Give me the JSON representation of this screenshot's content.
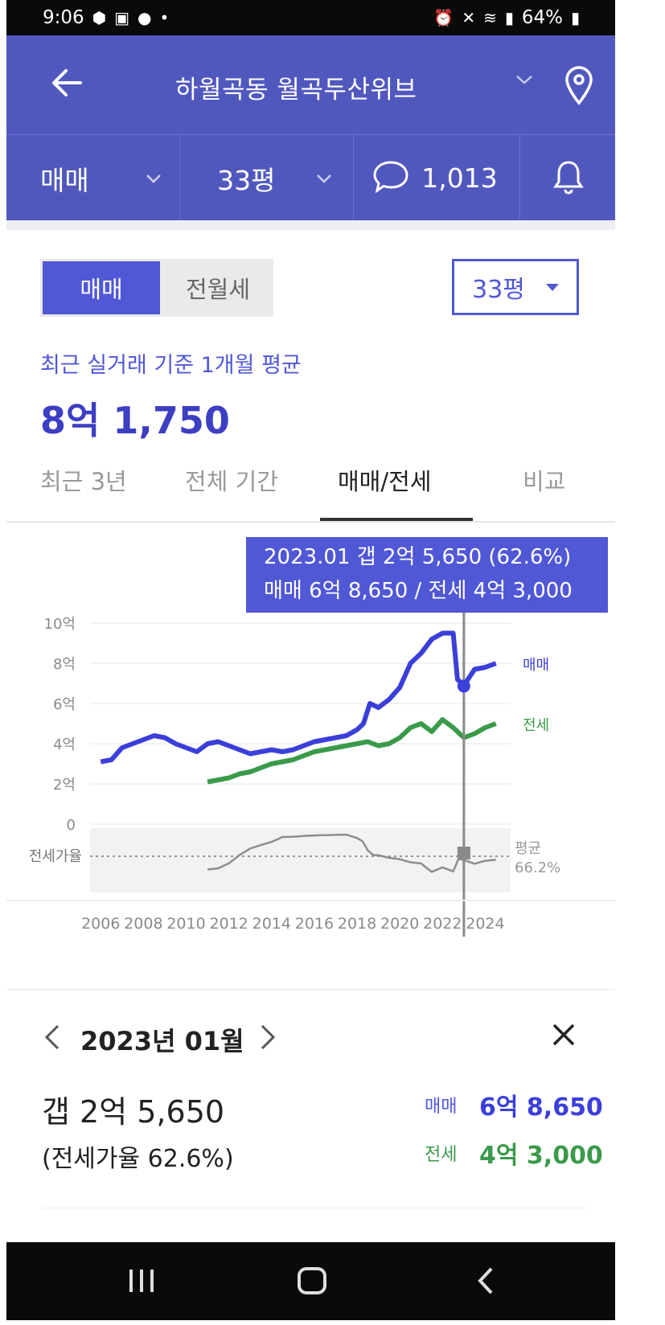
{
  "status": {
    "time": "9:06",
    "battery": "64%"
  },
  "header": {
    "title": "하월곡동 월곡두산위브"
  },
  "subbar": {
    "deal_type": "매매",
    "size": "33평",
    "comments": "1,013"
  },
  "segment": {
    "option_sale": "매매",
    "option_rent": "전월세",
    "size_select": "33평"
  },
  "summary": {
    "label": "최근 실거래 기준 1개월 평균",
    "price": "8억 1,750"
  },
  "tabs": [
    {
      "label": "최근 3년"
    },
    {
      "label": "전체 기간"
    },
    {
      "label": "매매/전세"
    },
    {
      "label": "비교"
    }
  ],
  "tooltip": {
    "line1": "2023.01  갭 2억 5,650 (62.6%)",
    "line2": "매매 6억 8,650 / 전세 4억 3,000"
  },
  "chart_data": {
    "type": "line",
    "x_ticks": [
      "2006",
      "2008",
      "2010",
      "2012",
      "2014",
      "2016",
      "2018",
      "2020",
      "2022",
      "2024"
    ],
    "y_ticks": [
      "10억",
      "8억",
      "6억",
      "4억",
      "2억",
      "0"
    ],
    "ylim": [
      0,
      10
    ],
    "y_unit": "억",
    "ratio_axis_label": "전세가율",
    "ratio_avg_label": "평균",
    "ratio_avg_value": "66.2%",
    "series": [
      {
        "name": "매매",
        "color": "#3b3fd9",
        "x": [
          2006.0,
          2006.5,
          2007.0,
          2007.5,
          2008.0,
          2008.5,
          2009.0,
          2009.5,
          2010.0,
          2010.5,
          2011.0,
          2011.5,
          2012.0,
          2012.5,
          2013.0,
          2013.5,
          2014.0,
          2014.5,
          2015.0,
          2015.5,
          2016.0,
          2016.5,
          2017.0,
          2017.5,
          2018.0,
          2018.3,
          2018.6,
          2019.0,
          2019.5,
          2020.0,
          2020.5,
          2021.0,
          2021.5,
          2022.0,
          2022.3,
          2022.5,
          2022.7,
          2023.0,
          2023.5,
          2024.0,
          2024.5
        ],
        "values": [
          3.1,
          3.2,
          3.8,
          4.0,
          4.2,
          4.4,
          4.3,
          4.0,
          3.8,
          3.6,
          4.0,
          4.1,
          3.9,
          3.7,
          3.5,
          3.6,
          3.7,
          3.6,
          3.7,
          3.9,
          4.1,
          4.2,
          4.3,
          4.4,
          4.7,
          5.0,
          6.0,
          5.8,
          6.2,
          6.8,
          8.0,
          8.5,
          9.2,
          9.5,
          9.5,
          9.5,
          7.2,
          6.9,
          7.7,
          7.8,
          8.0
        ]
      },
      {
        "name": "전세",
        "color": "#3a9a4a",
        "x": [
          2011.0,
          2011.5,
          2012.0,
          2012.5,
          2013.0,
          2013.5,
          2014.0,
          2014.5,
          2015.0,
          2015.5,
          2016.0,
          2016.5,
          2017.0,
          2017.5,
          2018.0,
          2018.5,
          2019.0,
          2019.5,
          2020.0,
          2020.5,
          2021.0,
          2021.5,
          2022.0,
          2022.5,
          2023.0,
          2023.5,
          2024.0,
          2024.5
        ],
        "values": [
          2.1,
          2.2,
          2.3,
          2.5,
          2.6,
          2.8,
          3.0,
          3.1,
          3.2,
          3.4,
          3.6,
          3.7,
          3.8,
          3.9,
          4.0,
          4.1,
          3.9,
          4.0,
          4.3,
          4.8,
          5.0,
          4.6,
          5.2,
          4.8,
          4.3,
          4.5,
          4.8,
          5.0
        ]
      }
    ],
    "selected": {
      "x": 2023.0,
      "sale": 6.865,
      "jeonse": 4.3
    }
  },
  "detail": {
    "month": "2023년 01월",
    "gap": "갭 2억 5,650",
    "ratio": "(전세가율 62.6%)",
    "sale_label": "매매",
    "sale_value": "6억 8,650",
    "jeonse_label": "전세",
    "jeonse_value": "4억 3,000"
  }
}
